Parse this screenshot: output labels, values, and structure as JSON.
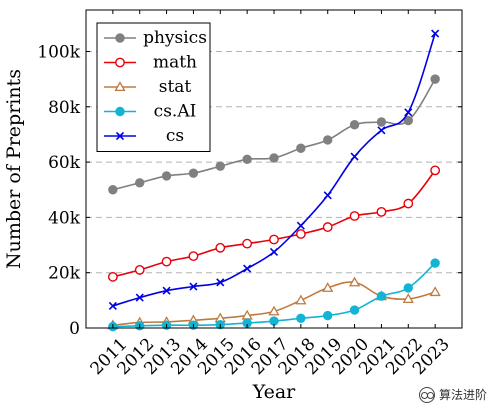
{
  "chart_data": {
    "type": "line",
    "title": "",
    "xlabel": "Year",
    "ylabel": "Number of Preprints",
    "x": [
      "2011",
      "2012",
      "2013",
      "2014",
      "2015",
      "2016",
      "2017",
      "2018",
      "2019",
      "2020",
      "2021",
      "2022",
      "2023"
    ],
    "ylim": [
      0,
      115000
    ],
    "yticks": [
      0,
      20000,
      40000,
      60000,
      80000,
      100000
    ],
    "ytick_labels": [
      "0",
      "20k",
      "40k",
      "60k",
      "80k",
      "100k"
    ],
    "grid": "horizontal dashed",
    "legend_position": "top-left",
    "smooth": true,
    "series": [
      {
        "name": "physics",
        "color": "#808080",
        "marker": "circle-filled",
        "values": [
          50000,
          52500,
          55000,
          56000,
          58500,
          61000,
          61500,
          65000,
          68000,
          73500,
          74500,
          75000,
          90000
        ]
      },
      {
        "name": "math",
        "color": "#e8000b",
        "marker": "circle-open",
        "values": [
          18500,
          21000,
          24000,
          26000,
          29000,
          30500,
          32000,
          34000,
          36500,
          40500,
          42000,
          45000,
          57000
        ]
      },
      {
        "name": "stat",
        "color": "#bf7a40",
        "marker": "triangle-open",
        "values": [
          1000,
          2000,
          2200,
          2800,
          3500,
          4500,
          6000,
          10000,
          14500,
          16500,
          11500,
          10500,
          13000
        ]
      },
      {
        "name": "cs.AI",
        "color": "#12b4d4",
        "marker": "circle-filled",
        "values": [
          500,
          800,
          1000,
          1000,
          1200,
          1800,
          2500,
          3500,
          4500,
          6500,
          11500,
          14500,
          23500
        ]
      },
      {
        "name": "cs",
        "color": "#0000e6",
        "marker": "x",
        "values": [
          8000,
          11000,
          13500,
          15000,
          16500,
          21500,
          27500,
          37000,
          48000,
          62000,
          71500,
          78000,
          106500
        ]
      }
    ]
  },
  "watermark": {
    "icon": "wechat-icon",
    "text": "算法进阶"
  }
}
